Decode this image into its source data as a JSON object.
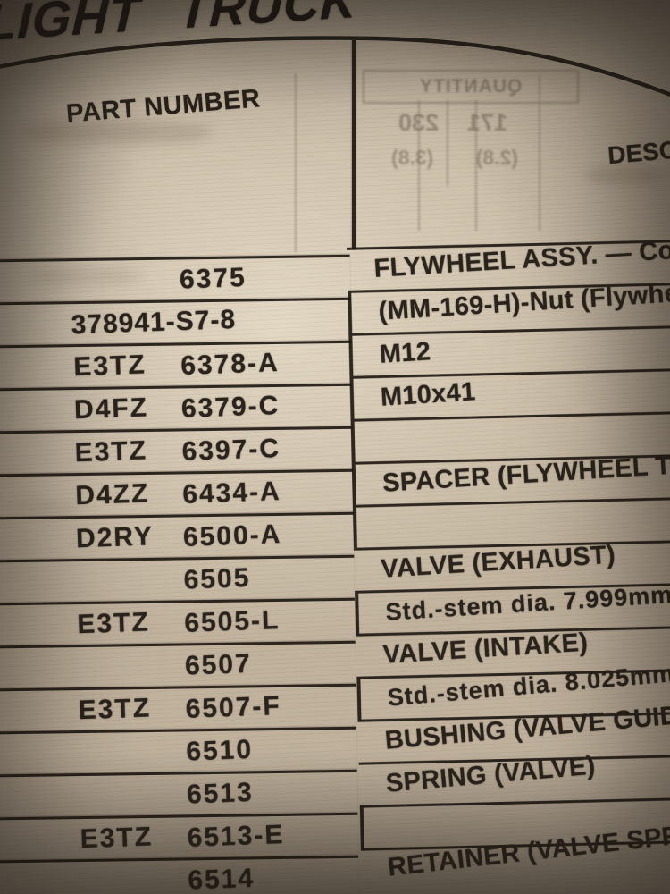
{
  "document": {
    "title": "LIGHT TRUCK",
    "table": {
      "columns": {
        "part_number": "PART NUMBER",
        "description": "DESCRIPTION"
      },
      "rows": [
        {
          "type": "heading",
          "prefix": "",
          "base": "6375",
          "desc": "FLYWHEEL ASSY. — Con"
        },
        {
          "type": "part-wide",
          "prefix": "",
          "base": "378941-S7-8",
          "desc": "(MM-169-H)-Nut (Flywhe"
        },
        {
          "type": "part",
          "prefix": "E3TZ",
          "base": "6378-A",
          "desc": "M12"
        },
        {
          "type": "part",
          "prefix": "D4FZ",
          "base": "6379-C",
          "desc": "M10x41"
        },
        {
          "type": "part",
          "prefix": "E3TZ",
          "base": "6397-C",
          "desc": ""
        },
        {
          "type": "part",
          "prefix": "D4ZZ",
          "base": "6434-A",
          "desc": "SPACER (FLYWHEEL TO"
        },
        {
          "type": "part",
          "prefix": "D2RY",
          "base": "6500-A",
          "desc": ""
        },
        {
          "type": "heading",
          "prefix": "",
          "base": "6505",
          "desc": "VALVE (EXHAUST)"
        },
        {
          "type": "part",
          "prefix": "E3TZ",
          "base": "6505-L",
          "desc": "Std.-stem dia. 7.999mm",
          "spec": true
        },
        {
          "type": "heading",
          "prefix": "",
          "base": "6507",
          "desc": "VALVE (INTAKE)"
        },
        {
          "type": "part",
          "prefix": "E3TZ",
          "base": "6507-F",
          "desc": "Std.-stem dia. 8.025mm",
          "spec": true
        },
        {
          "type": "heading",
          "prefix": "",
          "base": "6510",
          "desc": "BUSHING (VALVE GUID"
        },
        {
          "type": "heading",
          "prefix": "",
          "base": "6513",
          "desc": "SPRING (VALVE)"
        },
        {
          "type": "part",
          "prefix": "E3TZ",
          "base": "6513-E",
          "desc": ""
        },
        {
          "type": "heading",
          "prefix": "",
          "base": "6514",
          "desc": "RETAINER (VALVE SPR"
        }
      ]
    },
    "bleed_through": {
      "quantity_label": "QUANTITY",
      "values": [
        "171",
        "230"
      ],
      "liters": [
        "(2.8)",
        "(3.8)"
      ]
    }
  },
  "colors": {
    "paper": "#c0b29d",
    "ink": "#29231b",
    "rule_line": "#1b150e",
    "ghost_ink": "#605445"
  }
}
